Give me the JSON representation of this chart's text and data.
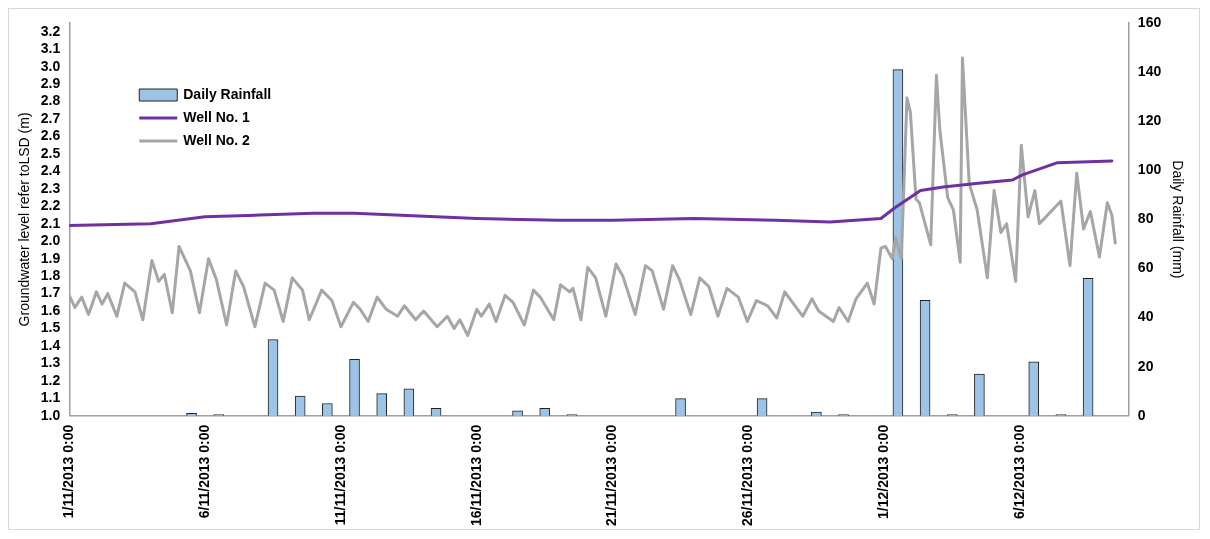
{
  "chart_data": {
    "type": "line",
    "ylabel": "Groundwater level refer toLSD (m)",
    "y2label": "Daily Rainfall (mm)",
    "xlim": [
      "2013-11-01T00:00",
      "2013-12-10T00:00"
    ],
    "xticks": [
      {
        "value": "2013-11-01T00:00",
        "label": "1/11/2013 0:00"
      },
      {
        "value": "2013-11-06T00:00",
        "label": "6/11/2013 0:00"
      },
      {
        "value": "2013-11-11T00:00",
        "label": "11/11/2013 0:00"
      },
      {
        "value": "2013-11-16T00:00",
        "label": "16/11/2013 0:00"
      },
      {
        "value": "2013-11-21T00:00",
        "label": "21/11/2013 0:00"
      },
      {
        "value": "2013-11-26T00:00",
        "label": "26/11/2013 0:00"
      },
      {
        "value": "2013-12-01T00:00",
        "label": "1/12/2013 0:00"
      },
      {
        "value": "2013-12-06T00:00",
        "label": "6/12/2013 0:00"
      }
    ],
    "ylim": [
      1.0,
      3.25
    ],
    "yticks": [
      {
        "value": 1.0,
        "label": "1.0"
      },
      {
        "value": 1.1,
        "label": "1.1"
      },
      {
        "value": 1.2,
        "label": "1.2"
      },
      {
        "value": 1.3,
        "label": "1.3"
      },
      {
        "value": 1.4,
        "label": "1.4"
      },
      {
        "value": 1.5,
        "label": "1.5"
      },
      {
        "value": 1.6,
        "label": "1.6"
      },
      {
        "value": 1.7,
        "label": "1.7"
      },
      {
        "value": 1.8,
        "label": "1.8"
      },
      {
        "value": 1.9,
        "label": "1.9"
      },
      {
        "value": 2.0,
        "label": "2.0"
      },
      {
        "value": 2.1,
        "label": "2.1"
      },
      {
        "value": 2.2,
        "label": "2.2"
      },
      {
        "value": 2.3,
        "label": "2.3"
      },
      {
        "value": 2.4,
        "label": "2.4"
      },
      {
        "value": 2.5,
        "label": "2.5"
      },
      {
        "value": 2.6,
        "label": "2.6"
      },
      {
        "value": 2.7,
        "label": "2.7"
      },
      {
        "value": 2.8,
        "label": "2.8"
      },
      {
        "value": 2.9,
        "label": "2.9"
      },
      {
        "value": 3.0,
        "label": "3.0"
      },
      {
        "value": 3.1,
        "label": "3.1"
      },
      {
        "value": 3.2,
        "label": "3.2"
      }
    ],
    "y2lim": [
      0,
      160
    ],
    "y2ticks": [
      0,
      20,
      40,
      60,
      80,
      100,
      120,
      140,
      160
    ],
    "grid": false,
    "legend": "top left",
    "marker": "none",
    "line_style": "solid",
    "series": [
      {
        "name": "Daily Rainfall",
        "type": "bar",
        "axis": "y2",
        "color": "#9dc3e6",
        "x": [
          "2013-11-05T12:00",
          "2013-11-06T12:00",
          "2013-11-08T12:00",
          "2013-11-09T12:00",
          "2013-11-10T12:00",
          "2013-11-11T12:00",
          "2013-11-12T12:00",
          "2013-11-13T12:00",
          "2013-11-14T12:00",
          "2013-11-17T12:00",
          "2013-11-18T12:00",
          "2013-11-19T12:00",
          "2013-11-23T12:00",
          "2013-11-26T12:00",
          "2013-11-28T12:00",
          "2013-11-29T12:00",
          "2013-12-01T12:00",
          "2013-12-02T12:00",
          "2013-12-03T12:00",
          "2013-12-04T12:00",
          "2013-12-06T12:00",
          "2013-12-07T12:00",
          "2013-12-08T12:00"
        ],
        "values": [
          1,
          0.5,
          31,
          8,
          5,
          23,
          9,
          11,
          3,
          2,
          3,
          0.5,
          7,
          7,
          1.5,
          0.5,
          141,
          47,
          0.5,
          17,
          22,
          0.5,
          56
        ]
      },
      {
        "name": "Well No. 1",
        "color": "#7030a0",
        "x": [
          "2013-11-01T00:00",
          "2013-11-04T00:00",
          "2013-11-06T00:00",
          "2013-11-08T00:00",
          "2013-11-10T00:00",
          "2013-11-11T12:00",
          "2013-11-13T00:00",
          "2013-11-16T00:00",
          "2013-11-19T00:00",
          "2013-11-21T00:00",
          "2013-11-24T00:00",
          "2013-11-27T00:00",
          "2013-11-29T00:00",
          "2013-11-30T21:00",
          "2013-12-01T09:00",
          "2013-12-02T08:00",
          "2013-12-03T04:00",
          "2013-12-04T09:00",
          "2013-12-05T17:00",
          "2013-12-06T02:00",
          "2013-12-07T09:00",
          "2013-12-09T09:00"
        ],
        "values": [
          2.09,
          2.1,
          2.14,
          2.15,
          2.16,
          2.16,
          2.15,
          2.13,
          2.12,
          2.12,
          2.13,
          2.12,
          2.11,
          2.13,
          2.19,
          2.29,
          2.31,
          2.33,
          2.35,
          2.38,
          2.45,
          2.46
        ]
      },
      {
        "name": "Well No. 2",
        "color": "#a6a6a6",
        "x": [
          "2013-11-01T00:00",
          "2013-11-01T05:00",
          "2013-11-01T11:00",
          "2013-11-01T17:00",
          "2013-11-02T00:00",
          "2013-11-02T05:00",
          "2013-11-02T10:00",
          "2013-11-02T18:00",
          "2013-11-03T01:00",
          "2013-11-03T10:00",
          "2013-11-03T17:00",
          "2013-11-04T01:00",
          "2013-11-04T07:00",
          "2013-11-04T12:00",
          "2013-11-04T19:00",
          "2013-11-05T01:00",
          "2013-11-05T11:00",
          "2013-11-05T19:00",
          "2013-11-06T03:00",
          "2013-11-06T10:00",
          "2013-11-06T19:00",
          "2013-11-07T03:00",
          "2013-11-07T10:00",
          "2013-11-07T20:00",
          "2013-11-08T05:00",
          "2013-11-08T13:00",
          "2013-11-08T21:00",
          "2013-11-09T05:00",
          "2013-11-09T14:00",
          "2013-11-09T20:00",
          "2013-11-10T07:00",
          "2013-11-10T16:00",
          "2013-11-11T00:00",
          "2013-11-11T11:00",
          "2013-11-11T17:00",
          "2013-11-12T00:00",
          "2013-11-12T08:00",
          "2013-11-12T16:00",
          "2013-11-13T02:00",
          "2013-11-13T08:00",
          "2013-11-13T18:00",
          "2013-11-14T01:00",
          "2013-11-14T13:00",
          "2013-11-14T22:00",
          "2013-11-15T04:00",
          "2013-11-15T09:00",
          "2013-11-15T16:00",
          "2013-11-16T00:00",
          "2013-11-16T04:00",
          "2013-11-16T11:00",
          "2013-11-16T17:00",
          "2013-11-17T01:00",
          "2013-11-17T08:00",
          "2013-11-17T18:00",
          "2013-11-18T02:00",
          "2013-11-18T08:00",
          "2013-11-18T20:00",
          "2013-11-19T02:00",
          "2013-11-19T10:00",
          "2013-11-19T13:00",
          "2013-11-19T20:00",
          "2013-11-20T02:00",
          "2013-11-20T09:00",
          "2013-11-20T18:00",
          "2013-11-21T03:00",
          "2013-11-21T09:00",
          "2013-11-21T20:00",
          "2013-11-22T05:00",
          "2013-11-22T11:00",
          "2013-11-22T21:00",
          "2013-11-23T05:00",
          "2013-11-23T11:00",
          "2013-11-23T21:00",
          "2013-11-24T05:00",
          "2013-11-24T13:00",
          "2013-11-24T21:00",
          "2013-11-25T05:00",
          "2013-11-25T15:00",
          "2013-11-25T23:00",
          "2013-11-26T07:00",
          "2013-11-26T17:00",
          "2013-11-27T01:00",
          "2013-11-27T08:00",
          "2013-11-27T16:00",
          "2013-11-28T00:00",
          "2013-11-28T08:00",
          "2013-11-28T14:00",
          "2013-11-29T03:00",
          "2013-11-29T08:00",
          "2013-11-29T16:00",
          "2013-11-29T23:00",
          "2013-11-30T09:00",
          "2013-11-30T15:00",
          "2013-11-30T21:00",
          "2013-12-01T01:00",
          "2013-12-01T07:00",
          "2013-12-01T10:00",
          "2013-12-01T15:00",
          "2013-12-01T20:00",
          "2013-12-01T23:00",
          "2013-12-02T04:00",
          "2013-12-02T07:00",
          "2013-12-02T17:00",
          "2013-12-02T22:00",
          "2013-12-03T01:00",
          "2013-12-03T08:00",
          "2013-12-03T13:00",
          "2013-12-03T19:00",
          "2013-12-03T21:00",
          "2013-12-04T03:00",
          "2013-12-04T10:00",
          "2013-12-04T19:00",
          "2013-12-05T01:00",
          "2013-12-05T07:00",
          "2013-12-05T12:00",
          "2013-12-05T20:00",
          "2013-12-06T01:00",
          "2013-12-06T07:00",
          "2013-12-06T13:00",
          "2013-12-06T17:00",
          "2013-12-07T12:00",
          "2013-12-07T20:00",
          "2013-12-08T02:00",
          "2013-12-08T08:00",
          "2013-12-08T14:00",
          "2013-12-08T22:00",
          "2013-12-09T05:00",
          "2013-12-09T09:00",
          "2013-12-09T12:00"
        ],
        "values": [
          1.69,
          1.62,
          1.68,
          1.58,
          1.71,
          1.64,
          1.7,
          1.57,
          1.76,
          1.71,
          1.55,
          1.89,
          1.77,
          1.81,
          1.59,
          1.97,
          1.83,
          1.59,
          1.9,
          1.78,
          1.52,
          1.83,
          1.74,
          1.51,
          1.76,
          1.72,
          1.54,
          1.79,
          1.72,
          1.55,
          1.72,
          1.66,
          1.51,
          1.65,
          1.61,
          1.54,
          1.68,
          1.61,
          1.57,
          1.63,
          1.55,
          1.6,
          1.51,
          1.57,
          1.5,
          1.55,
          1.46,
          1.61,
          1.57,
          1.64,
          1.54,
          1.69,
          1.65,
          1.52,
          1.72,
          1.68,
          1.55,
          1.75,
          1.71,
          1.73,
          1.55,
          1.85,
          1.79,
          1.57,
          1.87,
          1.8,
          1.58,
          1.86,
          1.83,
          1.61,
          1.86,
          1.78,
          1.58,
          1.79,
          1.74,
          1.57,
          1.73,
          1.68,
          1.54,
          1.66,
          1.63,
          1.56,
          1.71,
          1.64,
          1.57,
          1.67,
          1.6,
          1.54,
          1.62,
          1.54,
          1.67,
          1.76,
          1.64,
          1.96,
          1.97,
          1.9,
          2.02,
          1.9,
          2.82,
          2.74,
          2.24,
          2.22,
          1.98,
          2.95,
          2.64,
          2.25,
          2.18,
          1.88,
          3.05,
          2.33,
          2.18,
          1.79,
          2.29,
          2.05,
          2.1,
          1.77,
          2.55,
          2.14,
          2.29,
          2.1,
          2.23,
          1.86,
          2.39,
          2.07,
          2.17,
          1.91,
          2.22,
          2.15,
          1.99
        ]
      }
    ]
  }
}
